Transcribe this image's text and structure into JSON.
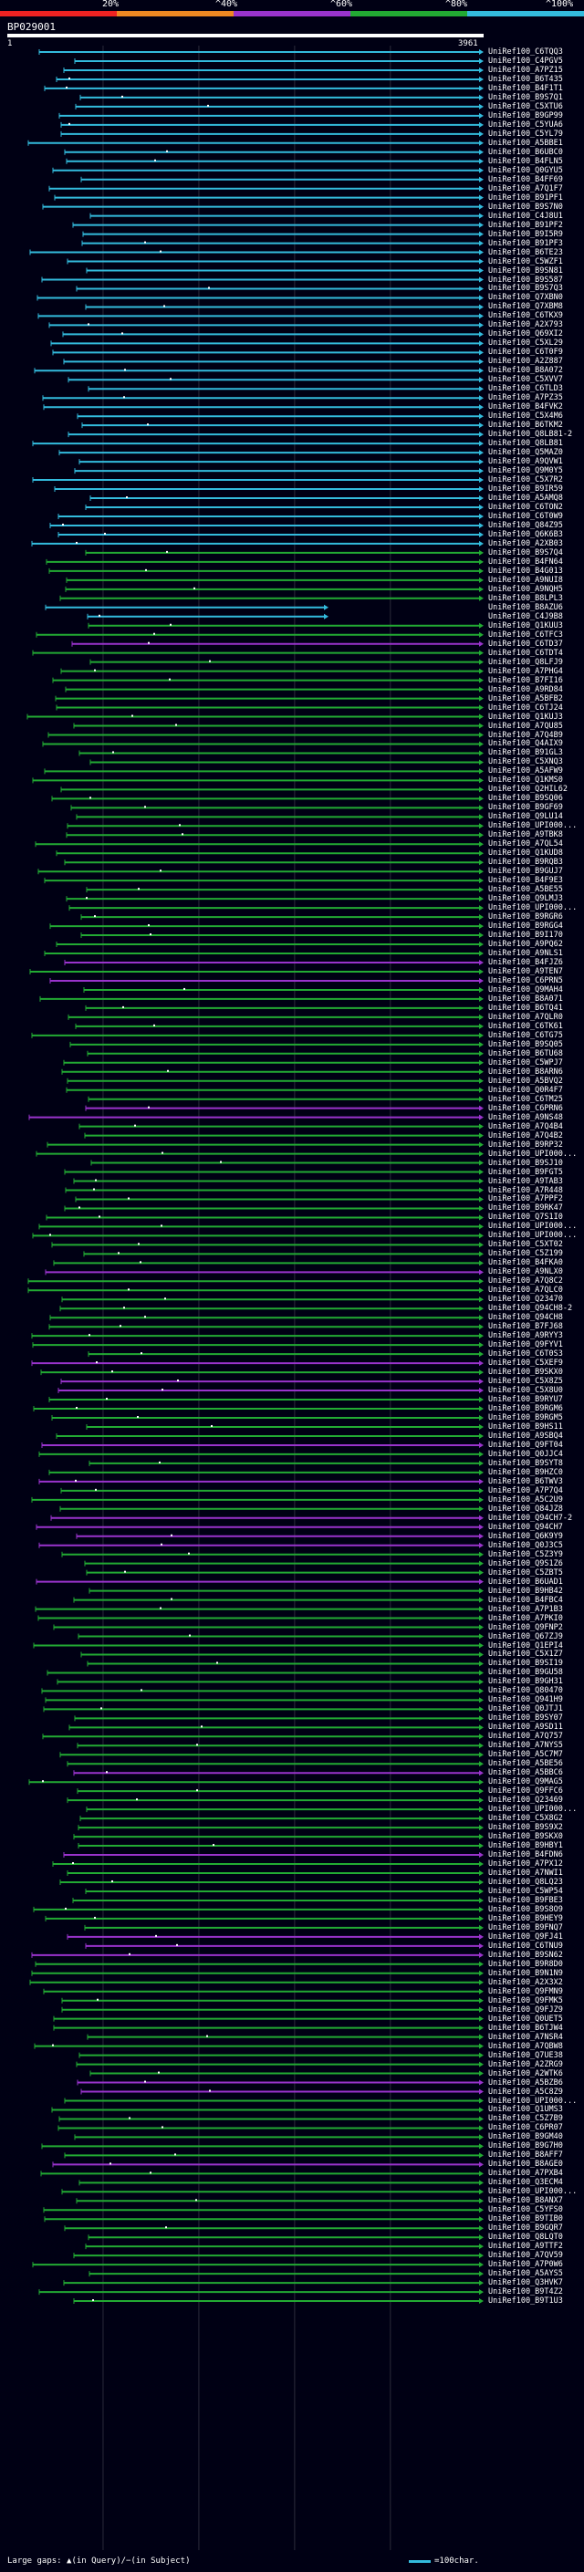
{
  "scale": {
    "labels": [
      "20%",
      "^40%",
      "^60%",
      "^80%",
      "^100%"
    ],
    "colors": [
      "#ee2222",
      "#ee8822",
      "#9933cc",
      "#22aa33",
      "#33bbdd"
    ]
  },
  "query": {
    "label": "BP029001",
    "start": "1",
    "end": "3961"
  },
  "legend": {
    "left_text": "Large gaps: ▲(in Query)/−(in Subject)",
    "right_text": "=100char."
  },
  "hits": [
    {
      "id": "UniRef100_C6TQQ3",
      "color": "#33bbdd"
    },
    {
      "id": "UniRef100_C4PGV5",
      "color": "#33bbdd"
    },
    {
      "id": "UniRef100_A7PZ15",
      "color": "#33bbdd"
    },
    {
      "id": "UniRef100_B6T435",
      "color": "#33bbdd"
    },
    {
      "id": "UniRef100_B4F1T1",
      "color": "#33bbdd"
    },
    {
      "id": "UniRef100_B9S7Q1",
      "color": "#33bbdd"
    },
    {
      "id": "UniRef100_C5XTU6",
      "color": "#33bbdd"
    },
    {
      "id": "UniRef100_B9GP99",
      "color": "#33bbdd"
    },
    {
      "id": "UniRef100_C5YUA6",
      "color": "#33bbdd"
    },
    {
      "id": "UniRef100_C5YL79",
      "color": "#33bbdd"
    },
    {
      "id": "UniRef100_A5BBE1",
      "color": "#33bbdd"
    },
    {
      "id": "UniRef100_B6UBC0",
      "color": "#33bbdd"
    },
    {
      "id": "UniRef100_B4FLN5",
      "color": "#33bbdd"
    },
    {
      "id": "UniRef100_Q0GYU5",
      "color": "#33bbdd"
    },
    {
      "id": "UniRef100_B4FF69",
      "color": "#33bbdd"
    },
    {
      "id": "UniRef100_A7Q1F7",
      "color": "#33bbdd"
    },
    {
      "id": "UniRef100_B91PF1",
      "color": "#33bbdd"
    },
    {
      "id": "UniRef100_B9S7N0",
      "color": "#33bbdd"
    },
    {
      "id": "UniRef100_C4J8U1",
      "color": "#33bbdd"
    },
    {
      "id": "UniRef100_B91PF2",
      "color": "#33bbdd"
    },
    {
      "id": "UniRef100_B9I5R9",
      "color": "#33bbdd"
    },
    {
      "id": "UniRef100_B91PF3",
      "color": "#33bbdd"
    },
    {
      "id": "UniRef100_B6TE23",
      "color": "#33bbdd"
    },
    {
      "id": "UniRef100_C5WZF1",
      "color": "#33bbdd"
    },
    {
      "id": "UniRef100_B9SN81",
      "color": "#33bbdd"
    },
    {
      "id": "UniRef100_B9S587",
      "color": "#33bbdd"
    },
    {
      "id": "UniRef100_B9S7Q3",
      "color": "#33bbdd"
    },
    {
      "id": "UniRef100_Q7XBN0",
      "color": "#33bbdd"
    },
    {
      "id": "UniRef100_Q7XBM8",
      "color": "#33bbdd"
    },
    {
      "id": "UniRef100_C6TKX9",
      "color": "#33bbdd"
    },
    {
      "id": "UniRef100_A2X793",
      "color": "#33bbdd"
    },
    {
      "id": "UniRef100_Q69XI2",
      "color": "#33bbdd"
    },
    {
      "id": "UniRef100_C5XL29",
      "color": "#33bbdd"
    },
    {
      "id": "UniRef100_C6T0F9",
      "color": "#33bbdd"
    },
    {
      "id": "UniRef100_A2Z887",
      "color": "#33bbdd"
    },
    {
      "id": "UniRef100_B8A072",
      "color": "#33bbdd"
    },
    {
      "id": "UniRef100_C5XVV7",
      "color": "#33bbdd"
    },
    {
      "id": "UniRef100_C6TLD3",
      "color": "#33bbdd"
    },
    {
      "id": "UniRef100_A7PZ35",
      "color": "#33bbdd"
    },
    {
      "id": "UniRef100_B4FVK2",
      "color": "#33bbdd"
    },
    {
      "id": "UniRef100_C5X4M6",
      "color": "#33bbdd"
    },
    {
      "id": "UniRef100_B6TKM2",
      "color": "#33bbdd"
    },
    {
      "id": "UniRef100_Q8LB81-2",
      "color": "#33bbdd"
    },
    {
      "id": "UniRef100_Q8LB81",
      "color": "#33bbdd"
    },
    {
      "id": "UniRef100_Q5MAZ0",
      "color": "#33bbdd"
    },
    {
      "id": "UniRef100_A9QVW1",
      "color": "#33bbdd"
    },
    {
      "id": "UniRef100_Q9M0Y5",
      "color": "#33bbdd"
    },
    {
      "id": "UniRef100_C5X7R2",
      "color": "#33bbdd"
    },
    {
      "id": "UniRef100_B9IR59",
      "color": "#33bbdd"
    },
    {
      "id": "UniRef100_A5AMQ8",
      "color": "#33bbdd"
    },
    {
      "id": "UniRef100_C6TON2",
      "color": "#33bbdd"
    },
    {
      "id": "UniRef100_C6T0W9",
      "color": "#33bbdd"
    },
    {
      "id": "UniRef100_Q84Z95",
      "color": "#33bbdd"
    },
    {
      "id": "UniRef100_Q6K6B3",
      "color": "#33bbdd"
    },
    {
      "id": "UniRef100_A2XB03",
      "color": "#33bbdd"
    },
    {
      "id": "UniRef100_B9S7Q4",
      "color": "#22aa33"
    },
    {
      "id": "UniRef100_B4FN64",
      "color": "#22aa33"
    },
    {
      "id": "UniRef100_B4G013",
      "color": "#22aa33"
    },
    {
      "id": "UniRef100_A9NUI8",
      "color": "#22aa33"
    },
    {
      "id": "UniRef100_A9NQH5",
      "color": "#22aa33"
    },
    {
      "id": "UniRef100_B8LPL3",
      "color": "#22aa33"
    },
    {
      "id": "UniRef100_B8AZU6",
      "color": "#33bbdd"
    },
    {
      "id": "UniRef100_C4J9B8",
      "color": "#33bbdd"
    },
    {
      "id": "UniRef100_Q1KUU3",
      "color": "#22aa33"
    },
    {
      "id": "UniRef100_C6TFC3",
      "color": "#22aa33"
    },
    {
      "id": "UniRef100_C6TD37",
      "color": "#9933cc"
    },
    {
      "id": "UniRef100_C6TDT4",
      "color": "#22aa33"
    },
    {
      "id": "UniRef100_Q8LFJ9",
      "color": "#22aa33"
    },
    {
      "id": "UniRef100_A7PHG4",
      "color": "#22aa33"
    },
    {
      "id": "UniRef100_B7FI16",
      "color": "#22aa33"
    },
    {
      "id": "UniRef100_A9RD84",
      "color": "#22aa33"
    },
    {
      "id": "UniRef100_A5BFB2",
      "color": "#22aa33"
    },
    {
      "id": "UniRef100_C6TJ24",
      "color": "#22aa33"
    },
    {
      "id": "UniRef100_Q1KUJ3",
      "color": "#22aa33"
    },
    {
      "id": "UniRef100_A7QU85",
      "color": "#22aa33"
    },
    {
      "id": "UniRef100_A7Q4B9",
      "color": "#22aa33"
    },
    {
      "id": "UniRef100_Q4AIX9",
      "color": "#22aa33"
    },
    {
      "id": "UniRef100_B91GL3",
      "color": "#22aa33"
    },
    {
      "id": "UniRef100_C5XNQ3",
      "color": "#22aa33"
    },
    {
      "id": "UniRef100_A5AFW9",
      "color": "#22aa33"
    },
    {
      "id": "UniRef100_Q1KMS0",
      "color": "#22aa33"
    },
    {
      "id": "UniRef100_Q2HIL62",
      "color": "#22aa33"
    },
    {
      "id": "UniRef100_B9SQ06",
      "color": "#22aa33"
    },
    {
      "id": "UniRef100_B9GF69",
      "color": "#22aa33"
    },
    {
      "id": "UniRef100_Q9LU14",
      "color": "#22aa33"
    },
    {
      "id": "UniRef100_UPI000...",
      "color": "#22aa33"
    },
    {
      "id": "UniRef100_A9TBK8",
      "color": "#22aa33"
    },
    {
      "id": "UniRef100_A7QL54",
      "color": "#22aa33"
    },
    {
      "id": "UniRef100_Q1KUD8",
      "color": "#22aa33"
    },
    {
      "id": "UniRef100_B9RQB3",
      "color": "#22aa33"
    },
    {
      "id": "UniRef100_B9GUJ7",
      "color": "#22aa33"
    },
    {
      "id": "UniRef100_B4F9E3",
      "color": "#22aa33"
    },
    {
      "id": "UniRef100_A5BE55",
      "color": "#22aa33"
    },
    {
      "id": "UniRef100_Q9LMJ3",
      "color": "#22aa33"
    },
    {
      "id": "UniRef100_UPI000...",
      "color": "#22aa33"
    },
    {
      "id": "UniRef100_B9RGR6",
      "color": "#22aa33"
    },
    {
      "id": "UniRef100_B9RGG4",
      "color": "#22aa33"
    },
    {
      "id": "UniRef100_B9I170",
      "color": "#22aa33"
    },
    {
      "id": "UniRef100_A9PQ62",
      "color": "#22aa33"
    },
    {
      "id": "UniRef100_A9NLS1",
      "color": "#22aa33"
    },
    {
      "id": "UniRef100_B4FJZ6",
      "color": "#9933cc"
    },
    {
      "id": "UniRef100_A9TEN7",
      "color": "#22aa33"
    },
    {
      "id": "UniRef100_C6PRN5",
      "color": "#9933cc"
    },
    {
      "id": "UniRef100_Q9MAH4",
      "color": "#22aa33"
    },
    {
      "id": "UniRef100_B8A071",
      "color": "#22aa33"
    },
    {
      "id": "UniRef100_B6TQ41",
      "color": "#22aa33"
    },
    {
      "id": "UniRef100_A7QLR0",
      "color": "#22aa33"
    },
    {
      "id": "UniRef100_C6TK61",
      "color": "#22aa33"
    },
    {
      "id": "UniRef100_C6TG75",
      "color": "#22aa33"
    },
    {
      "id": "UniRef100_B9SQ05",
      "color": "#22aa33"
    },
    {
      "id": "UniRef100_B6TU68",
      "color": "#22aa33"
    },
    {
      "id": "UniRef100_C5WPJ7",
      "color": "#22aa33"
    },
    {
      "id": "UniRef100_B8ARN6",
      "color": "#22aa33"
    },
    {
      "id": "UniRef100_A5BVQ2",
      "color": "#22aa33"
    },
    {
      "id": "UniRef100_Q0R4F7",
      "color": "#22aa33"
    },
    {
      "id": "UniRef100_C6TM25",
      "color": "#22aa33"
    },
    {
      "id": "UniRef100_C6PRN6",
      "color": "#9933cc"
    },
    {
      "id": "UniRef100_A9NS48",
      "color": "#9933cc"
    },
    {
      "id": "UniRef100_A7Q4B4",
      "color": "#22aa33"
    },
    {
      "id": "UniRef100_A7Q4B2",
      "color": "#22aa33"
    },
    {
      "id": "UniRef100_B9RP32",
      "color": "#22aa33"
    },
    {
      "id": "UniRef100_UPI000...",
      "color": "#22aa33"
    },
    {
      "id": "UniRef100_B9SJ10",
      "color": "#22aa33"
    },
    {
      "id": "UniRef100_B9FGT5",
      "color": "#22aa33"
    },
    {
      "id": "UniRef100_A9TAB3",
      "color": "#22aa33"
    },
    {
      "id": "UniRef100_A7R448",
      "color": "#22aa33"
    },
    {
      "id": "UniRef100_A7PPF2",
      "color": "#22aa33"
    },
    {
      "id": "UniRef100_B9RK47",
      "color": "#22aa33"
    },
    {
      "id": "UniRef100_Q7S1I0",
      "color": "#22aa33"
    },
    {
      "id": "UniRef100_UPI000...",
      "color": "#22aa33"
    },
    {
      "id": "UniRef100_UPI000...",
      "color": "#22aa33"
    },
    {
      "id": "UniRef100_C5XT02",
      "color": "#22aa33"
    },
    {
      "id": "UniRef100_C5Z199",
      "color": "#22aa33"
    },
    {
      "id": "UniRef100_B4FKA0",
      "color": "#22aa33"
    },
    {
      "id": "UniRef100_A9NLX0",
      "color": "#9933cc"
    },
    {
      "id": "UniRef100_A7Q8C2",
      "color": "#22aa33"
    },
    {
      "id": "UniRef100_A7QLC0",
      "color": "#22aa33"
    },
    {
      "id": "UniRef100_Q23470",
      "color": "#22aa33"
    },
    {
      "id": "UniRef100_Q94CH8-2",
      "color": "#22aa33"
    },
    {
      "id": "UniRef100_Q94CH8",
      "color": "#22aa33"
    },
    {
      "id": "UniRef100_B7FJ68",
      "color": "#22aa33"
    },
    {
      "id": "UniRef100_A9RYY3",
      "color": "#22aa33"
    },
    {
      "id": "UniRef100_Q9FYV1",
      "color": "#22aa33"
    },
    {
      "id": "UniRef100_C6T0S3",
      "color": "#22aa33"
    },
    {
      "id": "UniRef100_C5XEF9",
      "color": "#9933cc"
    },
    {
      "id": "UniRef100_B9SKX0",
      "color": "#22aa33"
    },
    {
      "id": "UniRef100_C5X8Z5",
      "color": "#9933cc"
    },
    {
      "id": "UniRef100_C5X8U0",
      "color": "#9933cc"
    },
    {
      "id": "UniRef100_B9RYU7",
      "color": "#22aa33"
    },
    {
      "id": "UniRef100_B9RGM6",
      "color": "#22aa33"
    },
    {
      "id": "UniRef100_B9RGM5",
      "color": "#22aa33"
    },
    {
      "id": "UniRef100_B9HS11",
      "color": "#22aa33"
    },
    {
      "id": "UniRef100_A9SBQ4",
      "color": "#22aa33"
    },
    {
      "id": "UniRef100_Q9FT04",
      "color": "#9933cc"
    },
    {
      "id": "UniRef100_Q0JJC4",
      "color": "#22aa33"
    },
    {
      "id": "UniRef100_B9SYT8",
      "color": "#22aa33"
    },
    {
      "id": "UniRef100_B9HZC0",
      "color": "#22aa33"
    },
    {
      "id": "UniRef100_B6TWV3",
      "color": "#9933cc"
    },
    {
      "id": "UniRef100_A7P7Q4",
      "color": "#22aa33"
    },
    {
      "id": "UniRef100_A5C2U9",
      "color": "#22aa33"
    },
    {
      "id": "UniRef100_Q84JZ8",
      "color": "#22aa33"
    },
    {
      "id": "UniRef100_Q94CH7-2",
      "color": "#9933cc"
    },
    {
      "id": "UniRef100_Q94CH7",
      "color": "#9933cc"
    },
    {
      "id": "UniRef100_Q6K9Y9",
      "color": "#9933cc"
    },
    {
      "id": "UniRef100_Q0J3C5",
      "color": "#9933cc"
    },
    {
      "id": "UniRef100_C5Z3Y9",
      "color": "#22aa33"
    },
    {
      "id": "UniRef100_Q9S1Z6",
      "color": "#22aa33"
    },
    {
      "id": "UniRef100_C5ZBT5",
      "color": "#22aa33"
    },
    {
      "id": "UniRef100_B6UAD1",
      "color": "#9933cc"
    },
    {
      "id": "UniRef100_B9HB42",
      "color": "#22aa33"
    },
    {
      "id": "UniRef100_B4FBC4",
      "color": "#22aa33"
    },
    {
      "id": "UniRef100_A7P1B3",
      "color": "#22aa33"
    },
    {
      "id": "UniRef100_A7PKI0",
      "color": "#22aa33"
    },
    {
      "id": "UniRef100_Q9FNP2",
      "color": "#22aa33"
    },
    {
      "id": "UniRef100_Q67ZJ9",
      "color": "#22aa33"
    },
    {
      "id": "UniRef100_Q1EPI4",
      "color": "#22aa33"
    },
    {
      "id": "UniRef100_C5X1Z7",
      "color": "#22aa33"
    },
    {
      "id": "UniRef100_B9SI19",
      "color": "#22aa33"
    },
    {
      "id": "UniRef100_B9GU58",
      "color": "#22aa33"
    },
    {
      "id": "UniRef100_B9GH31",
      "color": "#22aa33"
    },
    {
      "id": "UniRef100_Q80470",
      "color": "#22aa33"
    },
    {
      "id": "UniRef100_Q941H9",
      "color": "#22aa33"
    },
    {
      "id": "UniRef100_Q0JTJ1",
      "color": "#22aa33"
    },
    {
      "id": "UniRef100_B9SY07",
      "color": "#22aa33"
    },
    {
      "id": "UniRef100_A9SD11",
      "color": "#22aa33"
    },
    {
      "id": "UniRef100_A7Q757",
      "color": "#22aa33"
    },
    {
      "id": "UniRef100_A7NYS5",
      "color": "#22aa33"
    },
    {
      "id": "UniRef100_A5C7M7",
      "color": "#22aa33"
    },
    {
      "id": "UniRef100_A5BE56",
      "color": "#22aa33"
    },
    {
      "id": "UniRef100_A5BBC6",
      "color": "#9933cc"
    },
    {
      "id": "UniRef100_Q9MAG5",
      "color": "#22aa33"
    },
    {
      "id": "UniRef100_Q9FFC6",
      "color": "#22aa33"
    },
    {
      "id": "UniRef100_Q23469",
      "color": "#22aa33"
    },
    {
      "id": "UniRef100_UPI000...",
      "color": "#22aa33"
    },
    {
      "id": "UniRef100_C5X8G2",
      "color": "#22aa33"
    },
    {
      "id": "UniRef100_B9S9X2",
      "color": "#22aa33"
    },
    {
      "id": "UniRef100_B9SKX0",
      "color": "#22aa33"
    },
    {
      "id": "UniRef100_B9HBY1",
      "color": "#22aa33"
    },
    {
      "id": "UniRef100_B4FDN6",
      "color": "#9933cc"
    },
    {
      "id": "UniRef100_A7PX12",
      "color": "#22aa33"
    },
    {
      "id": "UniRef100_A7NWI1",
      "color": "#22aa33"
    },
    {
      "id": "UniRef100_Q8LQ23",
      "color": "#22aa33"
    },
    {
      "id": "UniRef100_C5WP54",
      "color": "#22aa33"
    },
    {
      "id": "UniRef100_B9FBE3",
      "color": "#22aa33"
    },
    {
      "id": "UniRef100_B9S8O9",
      "color": "#22aa33"
    },
    {
      "id": "UniRef100_B9HEY9",
      "color": "#22aa33"
    },
    {
      "id": "UniRef100_B9FNQ7",
      "color": "#22aa33"
    },
    {
      "id": "UniRef100_Q9FJ41",
      "color": "#9933cc"
    },
    {
      "id": "UniRef100_C6TNU9",
      "color": "#9933cc"
    },
    {
      "id": "UniRef100_B9SN62",
      "color": "#9933cc"
    },
    {
      "id": "UniRef100_B9R8D0",
      "color": "#22aa33"
    },
    {
      "id": "UniRef100_B9N1N9",
      "color": "#22aa33"
    },
    {
      "id": "UniRef100_A2X3X2",
      "color": "#22aa33"
    },
    {
      "id": "UniRef100_Q9FMN9",
      "color": "#22aa33"
    },
    {
      "id": "UniRef100_Q9FMK5",
      "color": "#22aa33"
    },
    {
      "id": "UniRef100_Q9FJZ9",
      "color": "#22aa33"
    },
    {
      "id": "UniRef100_Q0UET5",
      "color": "#22aa33"
    },
    {
      "id": "UniRef100_B6TJW4",
      "color": "#22aa33"
    },
    {
      "id": "UniRef100_A7NSR4",
      "color": "#22aa33"
    },
    {
      "id": "UniRef100_A7QBW8",
      "color": "#22aa33"
    },
    {
      "id": "UniRef100_Q7UE38",
      "color": "#22aa33"
    },
    {
      "id": "UniRef100_A2ZRG9",
      "color": "#22aa33"
    },
    {
      "id": "UniRef100_A2WTK6",
      "color": "#22aa33"
    },
    {
      "id": "UniRef100_A5BZB6",
      "color": "#9933cc"
    },
    {
      "id": "UniRef100_A5C8Z9",
      "color": "#9933cc"
    },
    {
      "id": "UniRef100_UPI000...",
      "color": "#22aa33"
    },
    {
      "id": "UniRef100_Q1UMS3",
      "color": "#22aa33"
    },
    {
      "id": "UniRef100_C5Z7B9",
      "color": "#22aa33"
    },
    {
      "id": "UniRef100_C6PR07",
      "color": "#22aa33"
    },
    {
      "id": "UniRef100_B9GM40",
      "color": "#22aa33"
    },
    {
      "id": "UniRef100_B9G7H0",
      "color": "#22aa33"
    },
    {
      "id": "UniRef100_B8AFF7",
      "color": "#22aa33"
    },
    {
      "id": "UniRef100_B8AGE0",
      "color": "#9933cc"
    },
    {
      "id": "UniRef100_A7PXB4",
      "color": "#22aa33"
    },
    {
      "id": "UniRef100_Q3ECM4",
      "color": "#22aa33"
    },
    {
      "id": "UniRef100_UPI000...",
      "color": "#22aa33"
    },
    {
      "id": "UniRef100_B8ANX7",
      "color": "#22aa33"
    },
    {
      "id": "UniRef100_C5YFS0",
      "color": "#22aa33"
    },
    {
      "id": "UniRef100_B9TIB0",
      "color": "#22aa33"
    },
    {
      "id": "UniRef100_B9GQR7",
      "color": "#22aa33"
    },
    {
      "id": "UniRef100_Q8LQT0",
      "color": "#22aa33"
    },
    {
      "id": "UniRef100_A9TTF2",
      "color": "#22aa33"
    },
    {
      "id": "UniRef100_A7QV59",
      "color": "#22aa33"
    },
    {
      "id": "UniRef100_A7P0W6",
      "color": "#22aa33"
    },
    {
      "id": "UniRef100_A5AYS5",
      "color": "#22aa33"
    },
    {
      "id": "UniRef100_Q3HVK7",
      "color": "#22aa33"
    },
    {
      "id": "UniRef100_B9T4Z2",
      "color": "#22aa33"
    },
    {
      "id": "UniRef100_B9T1U3",
      "color": "#22aa33"
    }
  ]
}
